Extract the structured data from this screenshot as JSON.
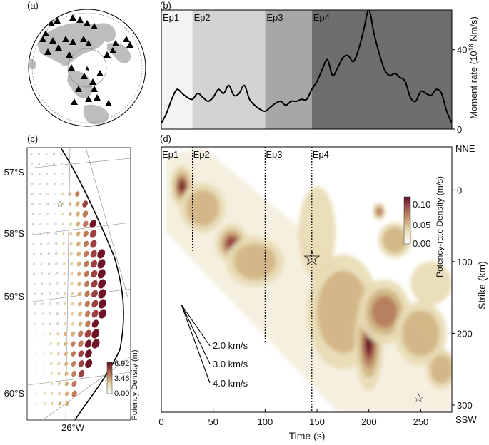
{
  "panels": {
    "a": {
      "label": "(a)"
    },
    "b": {
      "label": "(b)"
    },
    "c": {
      "label": "(c)"
    },
    "d": {
      "label": "(d)"
    }
  },
  "chart_data": [
    {
      "panel": "a",
      "type": "map",
      "description": "Azimuthal map with station triangles and epicentre star",
      "epicenter_symbol": "star",
      "stations": [
        [
          -50,
          62
        ],
        [
          -42,
          66
        ],
        [
          -20,
          70
        ],
        [
          -10,
          67
        ],
        [
          0,
          62
        ],
        [
          10,
          58
        ],
        [
          -58,
          48
        ],
        [
          -62,
          40
        ],
        [
          -48,
          38
        ],
        [
          -30,
          40
        ],
        [
          -20,
          36
        ],
        [
          -5,
          40
        ],
        [
          2,
          34
        ],
        [
          -40,
          28
        ],
        [
          -55,
          22
        ],
        [
          -25,
          18
        ],
        [
          55,
          40
        ],
        [
          60,
          32
        ],
        [
          40,
          34
        ],
        [
          36,
          24
        ],
        [
          28,
          18
        ],
        [
          18,
          -8
        ],
        [
          -4,
          -12
        ],
        [
          8,
          -20
        ],
        [
          10,
          -30
        ],
        [
          -12,
          -30
        ],
        [
          14,
          -42
        ],
        [
          2,
          -44
        ],
        [
          -18,
          -48
        ],
        [
          30,
          -50
        ],
        [
          -22,
          0
        ]
      ]
    },
    {
      "panel": "b",
      "type": "line",
      "ylabel": "Moment rate (10¹⁸ Nm/s)",
      "ylabel_parts": {
        "main": "Moment rate (10",
        "sup": "18",
        "unit": " Nm/s)"
      },
      "xlim": [
        0,
        280
      ],
      "ylim": [
        0,
        60
      ],
      "yticks": [
        0,
        40
      ],
      "episodes": [
        {
          "label": "Ep1",
          "start": 0,
          "end": 30,
          "color": "#f3f3f3"
        },
        {
          "label": "Ep2",
          "start": 30,
          "end": 100,
          "color": "#d3d3d3"
        },
        {
          "label": "Ep3",
          "start": 100,
          "end": 145,
          "color": "#a7a7a7"
        },
        {
          "label": "Ep4",
          "start": 145,
          "end": 280,
          "color": "#6e6e6e"
        }
      ],
      "x": [
        0,
        5,
        10,
        15,
        20,
        25,
        30,
        35,
        40,
        45,
        50,
        55,
        60,
        65,
        70,
        75,
        80,
        85,
        90,
        95,
        100,
        105,
        110,
        115,
        120,
        125,
        130,
        135,
        140,
        145,
        150,
        155,
        160,
        165,
        170,
        175,
        180,
        185,
        190,
        195,
        200,
        205,
        210,
        215,
        220,
        225,
        230,
        235,
        240,
        245,
        250,
        255,
        260,
        265,
        270,
        275,
        280
      ],
      "y": [
        3,
        8,
        15,
        20,
        18,
        16,
        15,
        18,
        16,
        14,
        16,
        20,
        18,
        22,
        17,
        18,
        22,
        15,
        12,
        10,
        9,
        11,
        13,
        14,
        12,
        14,
        14,
        15,
        15,
        20,
        24,
        30,
        35,
        27,
        31,
        36,
        37,
        34,
        40,
        50,
        60,
        48,
        38,
        30,
        27,
        28,
        26,
        24,
        16,
        14,
        19,
        18,
        17,
        20,
        18,
        9,
        3
      ]
    },
    {
      "panel": "c",
      "type": "map",
      "description": "Potency density per subfault on fault plane projected on map",
      "lat_labels": [
        "57°S",
        "58°S",
        "59°S",
        "60°S"
      ],
      "lon_label": "26°W",
      "colorbar_label": "Potency Density (m)",
      "colorbar_ticks": [
        "6.92",
        "3.46",
        "0.00"
      ],
      "colorbar_range": [
        0.0,
        6.92
      ],
      "epicenter_symbol": "star"
    },
    {
      "panel": "d",
      "type": "heatmap",
      "xlabel": "Time (s)",
      "ylabel": "Strike (km)",
      "xlim": [
        0,
        280
      ],
      "ylim": [
        -60,
        310
      ],
      "xticks": [
        0,
        50,
        100,
        150,
        200,
        250
      ],
      "yticks": [
        0,
        100,
        200,
        300
      ],
      "top_label": "NNE",
      "bottom_label": "SSW",
      "colorbar_label": "Potency-rate Density (m/s)",
      "colorbar_ticks": [
        "0.10",
        "0.05",
        "0.00"
      ],
      "colorbar_range": [
        0.0,
        0.12
      ],
      "episodes": [
        {
          "label": "Ep1",
          "start": 0
        },
        {
          "label": "Ep2",
          "start": 30
        },
        {
          "label": "Ep3",
          "start": 100
        },
        {
          "label": "Ep4",
          "start": 145
        }
      ],
      "episode_boundaries": [
        {
          "time": 30,
          "strike_top": -60,
          "strike_bottom": 85
        },
        {
          "time": 100,
          "strike_top": -60,
          "strike_bottom": 215
        },
        {
          "time": 145,
          "strike_top": -60,
          "strike_bottom": 310
        }
      ],
      "rupture_speeds": [
        "2.0 km/s",
        "3.0 km/s",
        "4.0 km/s"
      ],
      "hypocenter": {
        "time": 145,
        "strike": 95
      },
      "second_star": {
        "time": 248,
        "strike": 290
      },
      "sources": [
        {
          "t": 20,
          "s": -5,
          "a": 0.11,
          "wt": 11,
          "ws": 30
        },
        {
          "t": 40,
          "s": 25,
          "a": 0.05,
          "wt": 22,
          "ws": 35
        },
        {
          "t": 68,
          "s": 75,
          "a": 0.1,
          "wt": 16,
          "ws": 28
        },
        {
          "t": 90,
          "s": 100,
          "a": 0.04,
          "wt": 28,
          "ws": 35
        },
        {
          "t": 150,
          "s": 60,
          "a": 0.03,
          "wt": 18,
          "ws": 65
        },
        {
          "t": 175,
          "s": 170,
          "a": 0.05,
          "wt": 35,
          "ws": 80
        },
        {
          "t": 200,
          "s": 215,
          "a": 0.12,
          "wt": 14,
          "ws": 65
        },
        {
          "t": 215,
          "s": 170,
          "a": 0.06,
          "wt": 25,
          "ws": 45
        },
        {
          "t": 210,
          "s": 30,
          "a": 0.08,
          "wt": 6,
          "ws": 12
        },
        {
          "t": 225,
          "s": 70,
          "a": 0.04,
          "wt": 16,
          "ws": 25
        },
        {
          "t": 250,
          "s": 200,
          "a": 0.04,
          "wt": 25,
          "ws": 45
        },
        {
          "t": 270,
          "s": 250,
          "a": 0.05,
          "wt": 15,
          "ws": 28
        },
        {
          "t": 260,
          "s": 130,
          "a": 0.02,
          "wt": 20,
          "ws": 30
        }
      ]
    }
  ]
}
